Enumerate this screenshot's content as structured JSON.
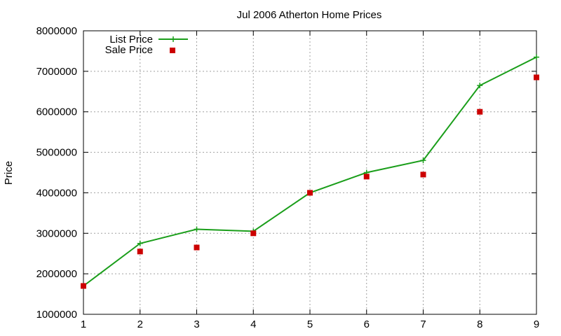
{
  "chart_data": {
    "type": "line",
    "title": "Jul 2006 Atherton Home Prices",
    "xlabel": "",
    "ylabel": "Price",
    "x": [
      1,
      2,
      3,
      4,
      5,
      6,
      7,
      8,
      9
    ],
    "xlim": [
      1,
      9
    ],
    "ylim": [
      1000000,
      8000000
    ],
    "xticks": [
      "1",
      "2",
      "3",
      "4",
      "5",
      "6",
      "7",
      "8",
      "9"
    ],
    "yticks": [
      "1000000",
      "2000000",
      "3000000",
      "4000000",
      "5000000",
      "6000000",
      "7000000",
      "8000000"
    ],
    "grid": true,
    "legend_position": "top-left",
    "series": [
      {
        "name": "List Price",
        "style": "line-plus",
        "color": "#1a9e1a",
        "values": [
          1700000,
          2750000,
          3100000,
          3050000,
          4000000,
          4500000,
          4800000,
          6650000,
          7350000
        ]
      },
      {
        "name": "Sale Price",
        "style": "square-points",
        "color": "#cc0000",
        "values": [
          1700000,
          2550000,
          2650000,
          3000000,
          4000000,
          4400000,
          4450000,
          6000000,
          6850000
        ]
      }
    ]
  }
}
